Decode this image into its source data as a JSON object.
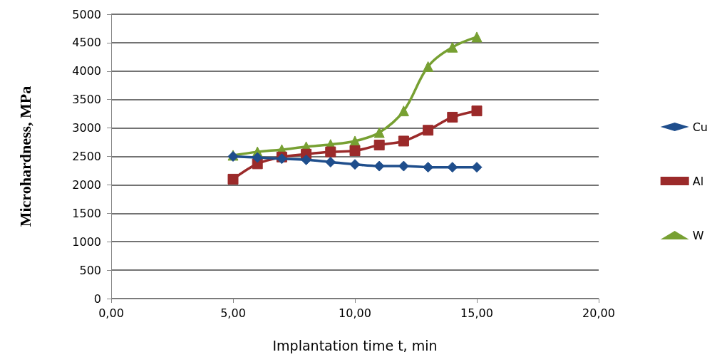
{
  "chart_data": {
    "type": "line",
    "xlabel": "Implantation time t, min",
    "ylabel": "Microhardness, MPa",
    "x": [
      5,
      6,
      7,
      8,
      9,
      10,
      11,
      12,
      13,
      14,
      15
    ],
    "series": [
      {
        "name": "Cu",
        "color": "#1f4e8c",
        "marker": "diamond",
        "values": [
          2500,
          2480,
          2460,
          2440,
          2400,
          2360,
          2330,
          2330,
          2310,
          2310,
          2310
        ]
      },
      {
        "name": "Al",
        "color": "#9b2a2a",
        "marker": "square",
        "values": [
          2100,
          2370,
          2490,
          2540,
          2580,
          2600,
          2700,
          2770,
          2960,
          3190,
          3300
        ]
      },
      {
        "name": "W",
        "color": "#77a032",
        "marker": "triangle",
        "values": [
          2520,
          2580,
          2620,
          2670,
          2710,
          2770,
          2920,
          3300,
          4080,
          4420,
          4600
        ]
      }
    ],
    "xlim": [
      0,
      20
    ],
    "xticks": [
      {
        "value": 0,
        "label": "0,00"
      },
      {
        "value": 5,
        "label": "5,00"
      },
      {
        "value": 10,
        "label": "10,00"
      },
      {
        "value": 15,
        "label": "15,00"
      },
      {
        "value": 20,
        "label": "20,00"
      }
    ],
    "ylim": [
      0,
      5000
    ],
    "yticks": [
      0,
      500,
      1000,
      1500,
      2000,
      2500,
      3000,
      3500,
      4000,
      4500,
      5000
    ],
    "grid": "y",
    "legend": "right",
    "line_style": "solid"
  }
}
